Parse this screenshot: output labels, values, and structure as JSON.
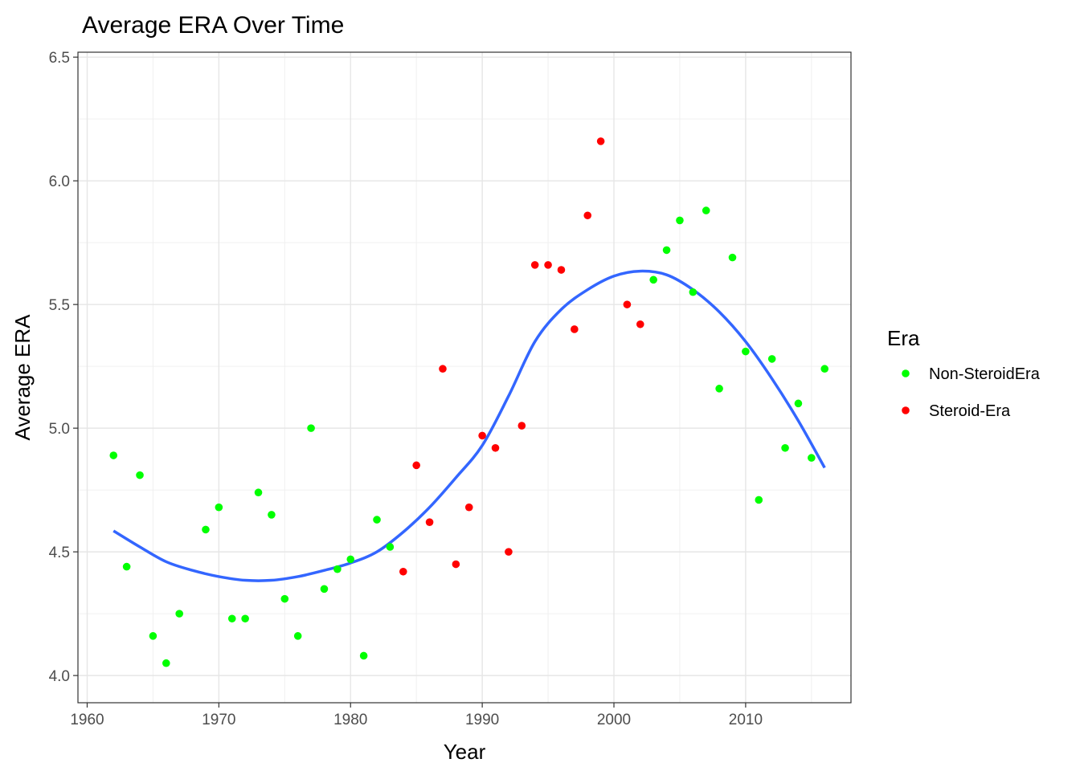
{
  "chart_data": {
    "type": "scatter",
    "title": "Average ERA Over Time",
    "xlabel": "Year",
    "ylabel": "Average ERA",
    "xlim": [
      1959.3,
      2018.0
    ],
    "ylim": [
      3.89,
      6.52
    ],
    "x_ticks": [
      1960,
      1970,
      1980,
      1990,
      2000,
      2010
    ],
    "y_ticks": [
      4.0,
      4.5,
      5.0,
      5.5,
      6.0,
      6.5
    ],
    "x_tick_labels": [
      "1960",
      "1970",
      "1980",
      "1990",
      "2000",
      "2010"
    ],
    "y_tick_labels": [
      "4.0",
      "4.5",
      "5.0",
      "5.5",
      "6.0",
      "6.5"
    ],
    "grid": true,
    "legend": {
      "title": "Era",
      "position": "right",
      "entries": [
        {
          "label": "Non-SteroidEra",
          "color": "#00ff00"
        },
        {
          "label": "Steroid-Era",
          "color": "#ff0000"
        }
      ]
    },
    "series": [
      {
        "name": "Non-SteroidEra",
        "color": "#00ff00",
        "points": [
          [
            1962,
            4.89
          ],
          [
            1963,
            4.44
          ],
          [
            1964,
            4.81
          ],
          [
            1965,
            4.16
          ],
          [
            1966,
            4.05
          ],
          [
            1967,
            4.25
          ],
          [
            1969,
            4.59
          ],
          [
            1970,
            4.68
          ],
          [
            1971,
            4.23
          ],
          [
            1972,
            4.23
          ],
          [
            1973,
            4.74
          ],
          [
            1974,
            4.65
          ],
          [
            1975,
            4.31
          ],
          [
            1976,
            4.16
          ],
          [
            1977,
            5.0
          ],
          [
            1978,
            4.35
          ],
          [
            1979,
            4.43
          ],
          [
            1980,
            4.47
          ],
          [
            1981,
            4.08
          ],
          [
            1982,
            4.63
          ],
          [
            1983,
            4.52
          ],
          [
            2003,
            5.6
          ],
          [
            2004,
            5.72
          ],
          [
            2005,
            5.84
          ],
          [
            2006,
            5.55
          ],
          [
            2007,
            5.88
          ],
          [
            2008,
            5.16
          ],
          [
            2009,
            5.69
          ],
          [
            2010,
            5.31
          ],
          [
            2011,
            4.71
          ],
          [
            2012,
            5.28
          ],
          [
            2013,
            4.92
          ],
          [
            2014,
            5.1
          ],
          [
            2015,
            4.88
          ],
          [
            2016,
            5.24
          ]
        ]
      },
      {
        "name": "Steroid-Era",
        "color": "#ff0000",
        "points": [
          [
            1984,
            4.42
          ],
          [
            1985,
            4.85
          ],
          [
            1986,
            4.62
          ],
          [
            1987,
            5.24
          ],
          [
            1988,
            4.45
          ],
          [
            1989,
            4.68
          ],
          [
            1990,
            4.97
          ],
          [
            1991,
            4.92
          ],
          [
            1992,
            4.5
          ],
          [
            1993,
            5.01
          ],
          [
            1994,
            5.66
          ],
          [
            1995,
            5.66
          ],
          [
            1996,
            5.64
          ],
          [
            1997,
            5.4
          ],
          [
            1998,
            5.86
          ],
          [
            1999,
            6.16
          ],
          [
            2001,
            5.5
          ],
          [
            2002,
            5.42
          ]
        ]
      }
    ],
    "smooth": {
      "color": "#3366ff",
      "points": [
        [
          1962,
          4.585
        ],
        [
          1964,
          4.52
        ],
        [
          1966,
          4.46
        ],
        [
          1968,
          4.425
        ],
        [
          1970,
          4.4
        ],
        [
          1972,
          4.385
        ],
        [
          1974,
          4.385
        ],
        [
          1976,
          4.4
        ],
        [
          1978,
          4.425
        ],
        [
          1980,
          4.455
        ],
        [
          1982,
          4.5
        ],
        [
          1984,
          4.58
        ],
        [
          1986,
          4.68
        ],
        [
          1988,
          4.8
        ],
        [
          1990,
          4.93
        ],
        [
          1992,
          5.13
        ],
        [
          1994,
          5.35
        ],
        [
          1996,
          5.48
        ],
        [
          1998,
          5.56
        ],
        [
          2000,
          5.615
        ],
        [
          2002,
          5.635
        ],
        [
          2004,
          5.62
        ],
        [
          2006,
          5.56
        ],
        [
          2008,
          5.47
        ],
        [
          2010,
          5.35
        ],
        [
          2012,
          5.2
        ],
        [
          2014,
          5.03
        ],
        [
          2016,
          4.84
        ]
      ]
    }
  }
}
